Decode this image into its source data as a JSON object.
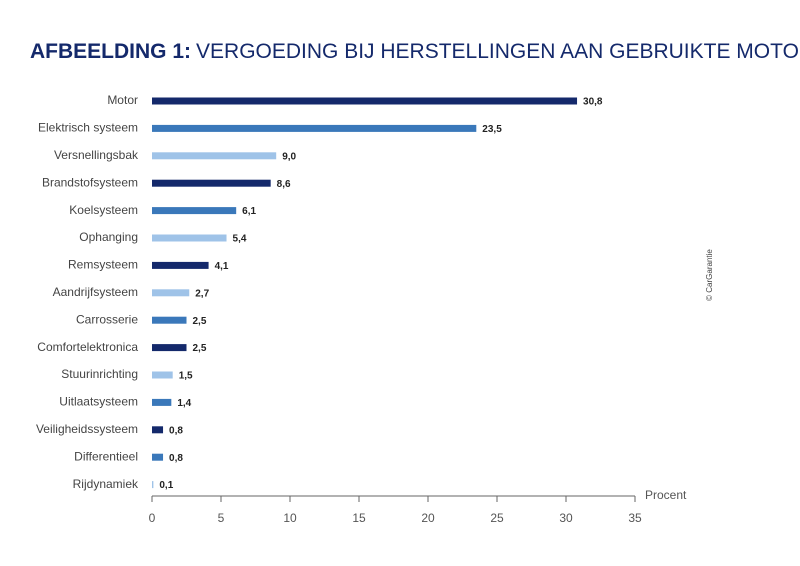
{
  "chart_data": {
    "type": "bar",
    "orientation": "horizontal",
    "title_label": "AFBEELDING 1:",
    "title": "VERGOEDING BIJ HERSTELLINGEN AAN GEBRUIKTE MOTOREN",
    "x_label": "Procent",
    "credit": "© CarGarantie",
    "categories": [
      "Motor",
      "Elektrisch systeem",
      "Versnellingsbak",
      "Brandstofsysteem",
      "Koelsysteem",
      "Ophanging",
      "Remsysteem",
      "Aandrijfsysteem",
      "Carrosserie",
      "Comfortelektronica",
      "Stuurinrichting",
      "Uitlaatsysteem",
      "Veiligheidssysteem",
      "Differentieel",
      "Rijdynamiek"
    ],
    "values": [
      30.8,
      23.5,
      9.0,
      8.6,
      6.1,
      5.4,
      4.1,
      2.7,
      2.5,
      2.5,
      1.5,
      1.4,
      0.8,
      0.8,
      0.1
    ],
    "value_labels": [
      "30,8",
      "23,5",
      "9,0",
      "8,6",
      "6,1",
      "5,4",
      "4,1",
      "2,7",
      "2,5",
      "2,5",
      "1,5",
      "1,4",
      "0,8",
      "0,8",
      "0,1"
    ],
    "colors": [
      "#14296b",
      "#3a78ba",
      "#9fc3e8",
      "#14296b",
      "#3a78ba",
      "#9fc3e8",
      "#14296b",
      "#9fc3e8",
      "#3a78ba",
      "#14296b",
      "#9fc3e8",
      "#3a78ba",
      "#14296b",
      "#3a78ba",
      "#9fc3e8"
    ],
    "xlim": [
      0,
      35
    ],
    "xticks": [
      0,
      5,
      10,
      15,
      20,
      25,
      30,
      35
    ]
  }
}
